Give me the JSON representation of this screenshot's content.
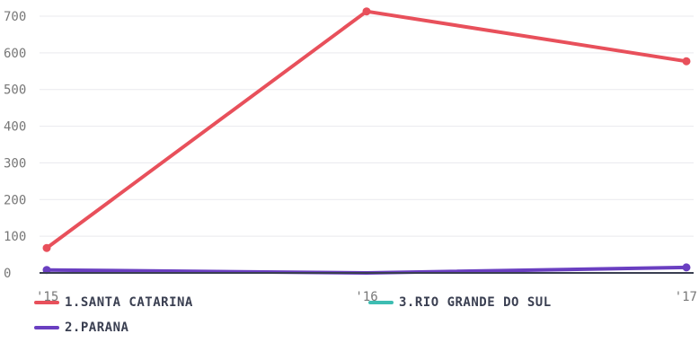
{
  "chart_data": {
    "type": "line",
    "x": [
      "'15",
      "'16",
      "'17"
    ],
    "ylim": [
      0,
      700
    ],
    "yticks": [
      "0",
      "100",
      "200",
      "300",
      "400",
      "500",
      "600",
      "700"
    ],
    "grid": true,
    "legend_position": "bottom",
    "series": [
      {
        "name": "1.SANTA CATARINA",
        "color": "#e8505b",
        "values": [
          68,
          713,
          577
        ]
      },
      {
        "name": "2.PARANA",
        "color": "#6a3fc1",
        "values": [
          8,
          0,
          15
        ]
      },
      {
        "name": "3.RIO GRANDE DO SUL",
        "color": "#3dbdb2",
        "values": [
          0,
          0,
          0
        ]
      }
    ],
    "axis_color": "#3a3f51"
  }
}
